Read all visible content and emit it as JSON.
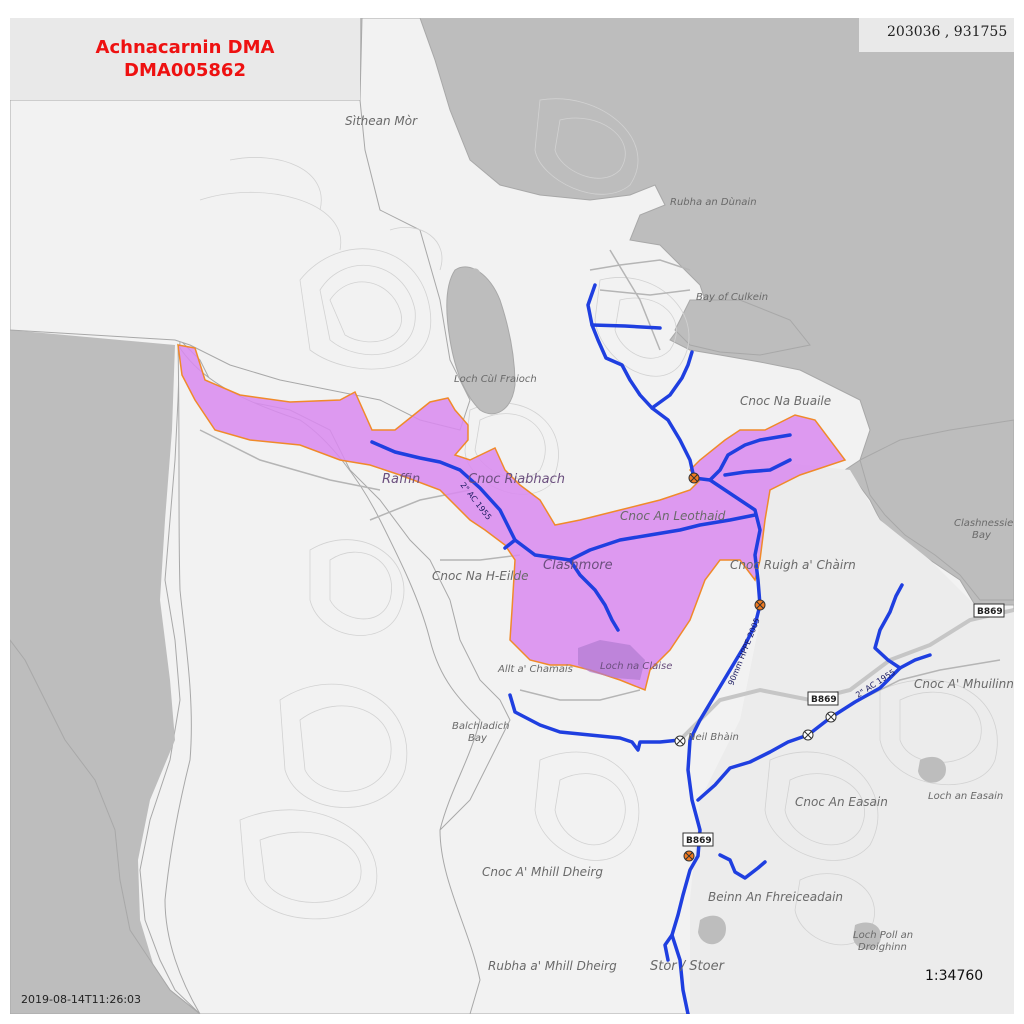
{
  "title": {
    "line1": "Achnacarnin DMA",
    "line2": "DMA005862"
  },
  "coordinates": "203036 , 931755",
  "scale": "1:34760",
  "timestamp": "2019-08-14T11:26:03",
  "colors": {
    "sea": "#bdbdbd",
    "land": "#f2f2f2",
    "dma_fill": "#d98af0",
    "dma_outline": "#f08a2a",
    "water_main": "#1f3fe0",
    "title_text": "#ee1111",
    "valve_fill": "#f07a20"
  },
  "places": {
    "sithean_mor": "Sìthean Mòr",
    "rubha_an_dunain": "Rubha an Dùnain",
    "bay_of_culkein": "Bay of Culkein",
    "loch_cul_fraioch": "Loch Cùl Fraioch",
    "cnoc_na_buaile": "Cnoc Na Buaile",
    "raffin": "Raffin",
    "cnoc_riabhach": "Cnoc Riabhach",
    "cnoc_an_leothaid": "Cnoc An Leothaid",
    "clashnessie_bay_1": "Clashnessie",
    "clashnessie_bay_2": "Bay",
    "clashmore": "Clashmore",
    "cnoc_ruigh_a_chairn": "Cnoc Ruigh a' Chàirn",
    "cnoc_na_h_eilde": "Cnoc Na H-Eilde",
    "allt_a_chamais": "Allt a' Chamais",
    "loch_na_claise": "Loch na Claise",
    "cnoc_a_mhuilinn": "Cnoc A' Mhuilinn",
    "balchladich_1": "Balchladich",
    "balchladich_2": "Bay",
    "neil_bhain": "Neil Bhàin",
    "cnoc_an_easain": "Cnoc An Easain",
    "loch_an_easain": "Loch an Easain",
    "cnoc_a_mhill_dheirg": "Cnoc A' Mhill Dheirg",
    "beinn_an_fhreiceadain": "Beinn An Fhreiceadain",
    "loch_poll_an_1": "Loch Poll an",
    "loch_poll_an_2": "Droighinn",
    "rubha_a_mhill_dheirg": "Rubha a' Mhill Dheirg",
    "stoer": "Stor / Stoer"
  },
  "road_badges": {
    "b869_east": "B869",
    "b869_mid": "B869",
    "b869_south": "B869"
  },
  "pipe_labels": {
    "ac_1955_west": "2\" AC 1955",
    "hppe_2005": "90mm HPPE 2005",
    "ac_1955_east": "2\" AC 1955"
  }
}
